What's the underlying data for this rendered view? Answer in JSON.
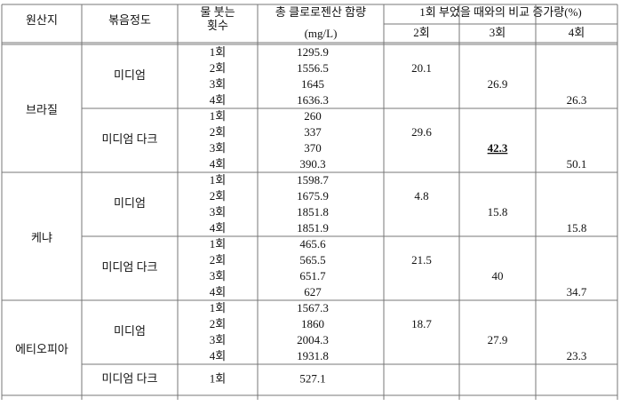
{
  "table": {
    "header": {
      "origin": "원산지",
      "roast": "볶음정도",
      "pours": [
        "물 붓는",
        "횟수"
      ],
      "chlorogenic": "총 클로로젠산 함량",
      "unit": "(mg/L)",
      "comparison": "1회 부었을 때와의 비교 증가량(%)",
      "columns": [
        "2회",
        "3회",
        "4회"
      ]
    },
    "origins": [
      {
        "name": "브라질",
        "roasts": [
          {
            "name": "미디엄",
            "pours": [
              "1회",
              "2회",
              "3회",
              "4회"
            ],
            "values": [
              1295.9,
              1556.5,
              1645,
              1636.3
            ],
            "increases": [
              20.1,
              26.9,
              26.3
            ]
          },
          {
            "name": "미디엄 다크",
            "pours": [
              "1회",
              "2회",
              "3회",
              "4회"
            ],
            "values": [
              260,
              337,
              370,
              390.3
            ],
            "increases": [
              29.6,
              42.3,
              50.1
            ],
            "emphasized": 1
          }
        ]
      },
      {
        "name": "케냐",
        "roasts": [
          {
            "name": "미디엄",
            "pours": [
              "1회",
              "2회",
              "3회",
              "4회"
            ],
            "values": [
              1598.7,
              1675.9,
              1851.8,
              1851.9
            ],
            "increases": [
              4.8,
              15.8,
              15.8
            ]
          },
          {
            "name": "미디엄 다크",
            "pours": [
              "1회",
              "2회",
              "3회",
              "4회"
            ],
            "values": [
              465.6,
              565.5,
              651.7,
              627
            ],
            "increases": [
              21.5,
              40.0,
              34.7
            ]
          }
        ]
      },
      {
        "name": "에티오피아",
        "roasts": [
          {
            "name": "미디엄",
            "pours": [
              "1회",
              "2회",
              "3회",
              "4회"
            ],
            "values": [
              1567.3,
              1860,
              2004.3,
              1931.8
            ],
            "increases": [
              18.7,
              27.9,
              23.3
            ]
          },
          {
            "name": "미디엄 다크",
            "pours": [
              "1회"
            ],
            "values": [
              527.1
            ]
          }
        ]
      }
    ]
  }
}
